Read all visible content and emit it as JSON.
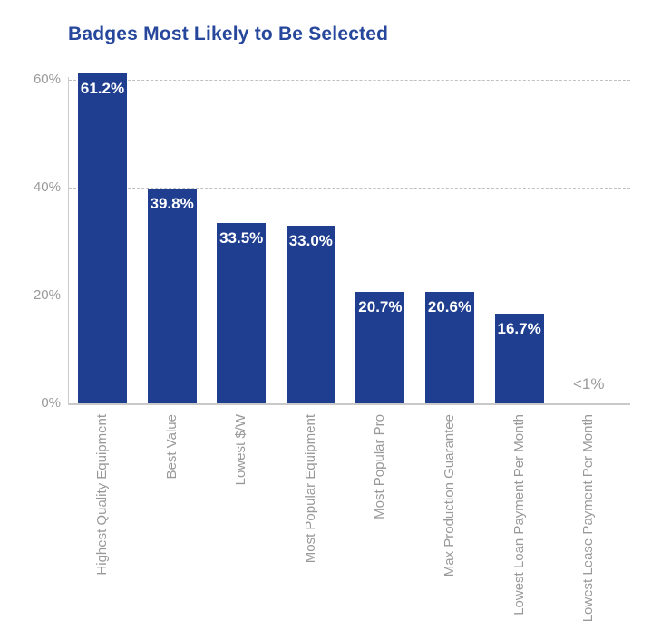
{
  "title": "Badges Most Likely to Be Selected",
  "colors": {
    "bar": "#1F3E8F",
    "title": "#26479B",
    "axis_tick_label": "#9a9a9a",
    "category_label": "#999999",
    "gridline": "#c0c0c0",
    "baseline": "#c9c9c9",
    "value_label_inside": "#ffffff",
    "value_label_small": "#9c9c9c"
  },
  "chart_data": {
    "type": "bar",
    "title": "Badges Most Likely to Be Selected",
    "categories": [
      "Highest Quality Equipment",
      "Best Value",
      "Lowest $/W",
      "Most Popular Equipment",
      "Most Popular Pro",
      "Max Production Guarantee",
      "Lowest Loan Payment Per Month",
      "Lowest Lease Payment Per Month"
    ],
    "values": [
      61.2,
      39.8,
      33.5,
      33.0,
      20.7,
      20.6,
      16.7,
      0.5
    ],
    "value_labels": [
      "61.2%",
      "39.8%",
      "33.5%",
      "33.0%",
      "20.7%",
      "20.6%",
      "16.7%",
      "<1%"
    ],
    "xlabel": "",
    "ylabel": "",
    "ylim": [
      0,
      60
    ],
    "y_ticks": [
      {
        "value": 60,
        "label": "60%"
      },
      {
        "value": 40,
        "label": "40%"
      },
      {
        "value": 20,
        "label": "20%"
      },
      {
        "value": 0,
        "label": "0%"
      }
    ],
    "grid": "horizontal-dashed",
    "legend": "none",
    "orientation": "vertical",
    "category_label_rotation": "vertical-bottom-to-top"
  }
}
